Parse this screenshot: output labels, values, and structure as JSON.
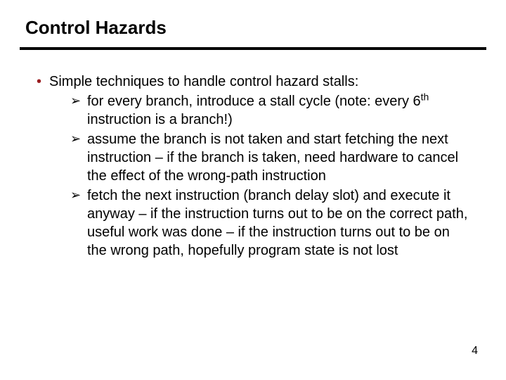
{
  "title": "Control Hazards",
  "accent_color": "#9a1d20",
  "rule_color": "#000000",
  "background_color": "#ffffff",
  "text_color": "#000000",
  "title_fontsize": 26,
  "body_fontsize": 20,
  "bullet": {
    "marker": "•",
    "text": "Simple techniques to handle control hazard stalls:"
  },
  "sub_marker": "➢",
  "subitems": [
    {
      "pre": "for every branch, introduce a stall cycle (note: every 6",
      "sup": "th",
      "post": " instruction is a branch!)"
    },
    {
      "pre": "assume the branch is not taken and start fetching the next instruction – if the branch is taken, need hardware to cancel the effect of the wrong-path instruction",
      "sup": "",
      "post": ""
    },
    {
      "pre": "fetch the next instruction (branch delay slot) and execute it anyway – if the instruction turns out to be on the correct path, useful work was done – if the instruction turns out to be on the wrong path, hopefully program state is not lost",
      "sup": "",
      "post": ""
    }
  ],
  "page_number": "4"
}
